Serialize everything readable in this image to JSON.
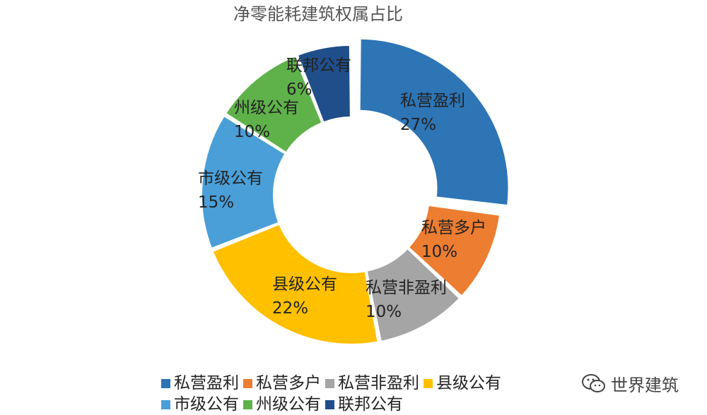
{
  "chart_data": {
    "type": "pie",
    "donut": true,
    "title": "净零能耗建筑权属占比",
    "categories": [
      "私营盈利",
      "私营多户",
      "私营非盈利",
      "县级公有",
      "市级公有",
      "州级公有",
      "联邦公有"
    ],
    "values": [
      27,
      10,
      10,
      22,
      15,
      10,
      6
    ],
    "value_labels": [
      "27%",
      "10%",
      "10%",
      "22%",
      "15%",
      "10%",
      "6%"
    ],
    "colors": [
      "#2e75b6",
      "#ed7d31",
      "#a5a5a5",
      "#ffc000",
      "#4a9fd8",
      "#5fb24a",
      "#1f4e8a"
    ],
    "exploded_slice": "私营盈利",
    "legend_position": "bottom"
  },
  "watermark": {
    "text": "世界建筑",
    "icon": "wechat-icon"
  }
}
